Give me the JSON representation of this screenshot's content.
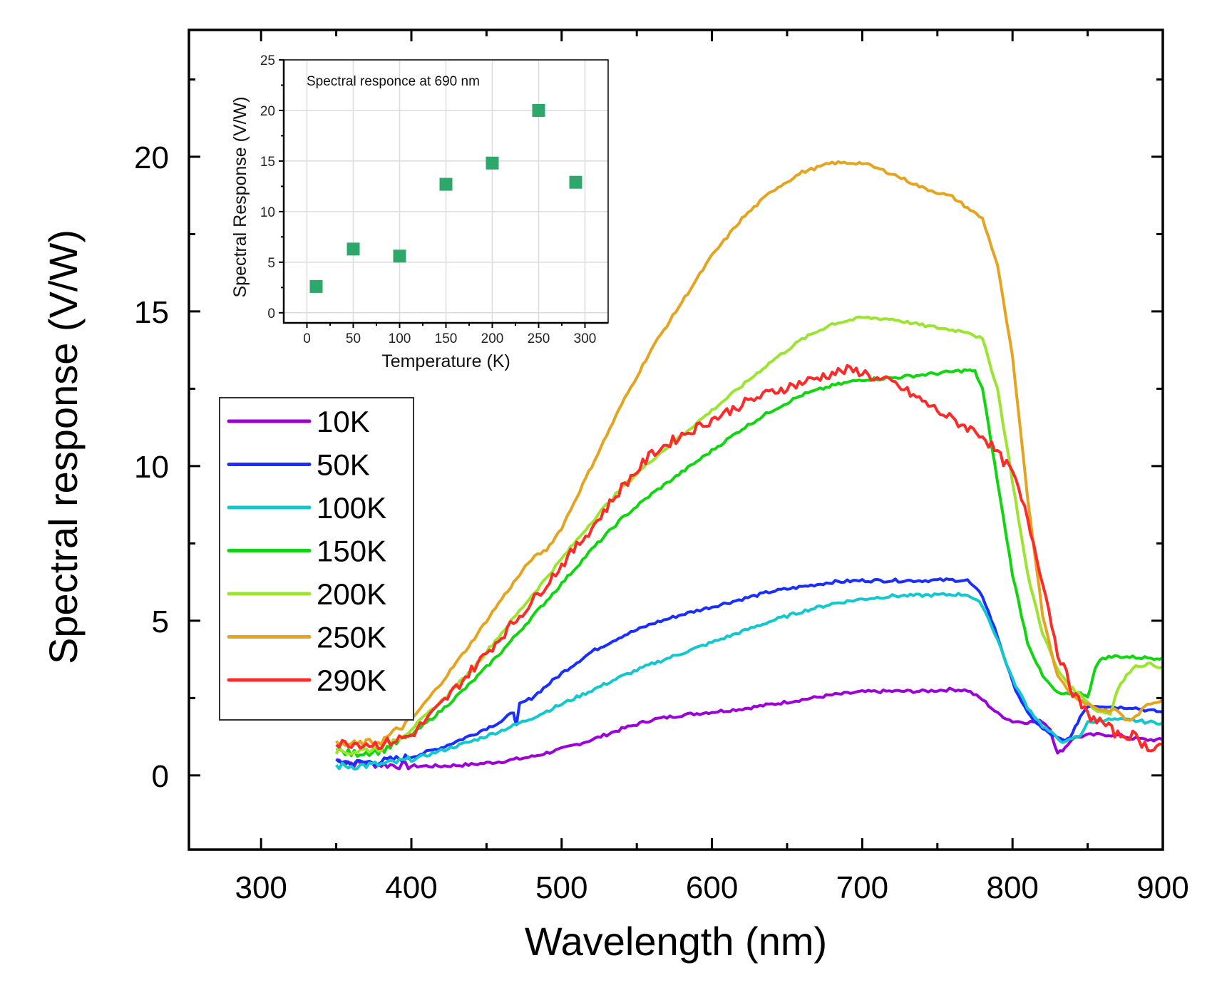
{
  "chart_data": [
    {
      "type": "line",
      "title": "",
      "xlabel": "Wavelength (nm)",
      "ylabel": "Spectral response (V/W)",
      "xlim": [
        252,
        900
      ],
      "ylim": [
        -2.4,
        24.1
      ],
      "xticks": [
        300,
        400,
        500,
        600,
        700,
        800,
        900
      ],
      "xtick_labels": [
        "300",
        "400",
        "500",
        "600",
        "700",
        "800",
        "900"
      ],
      "yticks": [
        0,
        5,
        10,
        15,
        20
      ],
      "ytick_labels": [
        "0",
        "5",
        "10",
        "15",
        "20"
      ],
      "grid": false,
      "legend_position": "left-middle",
      "series": [
        {
          "name": "10K",
          "color": "#9b00d9",
          "x": [
            350,
            360,
            380,
            400,
            420,
            440,
            460,
            480,
            500,
            520,
            540,
            560,
            580,
            600,
            620,
            640,
            660,
            680,
            700,
            720,
            740,
            760,
            770,
            780,
            790,
            800,
            810,
            820,
            825,
            830,
            835,
            840,
            850,
            860,
            870,
            880,
            890,
            900
          ],
          "y": [
            0.5,
            0.4,
            0.35,
            0.3,
            0.3,
            0.35,
            0.45,
            0.6,
            0.85,
            1.15,
            1.5,
            1.8,
            1.95,
            2.05,
            2.15,
            2.3,
            2.45,
            2.6,
            2.7,
            2.72,
            2.72,
            2.78,
            2.75,
            2.45,
            2.0,
            1.75,
            1.72,
            1.75,
            1.5,
            0.7,
            0.9,
            1.2,
            1.3,
            1.32,
            1.3,
            1.2,
            1.15,
            1.15
          ]
        },
        {
          "name": "50K",
          "color": "#1a2fff",
          "x": [
            350,
            360,
            380,
            400,
            420,
            440,
            460,
            468,
            470,
            472,
            480,
            500,
            520,
            540,
            560,
            580,
            600,
            620,
            640,
            660,
            680,
            700,
            720,
            740,
            760,
            770,
            780,
            790,
            800,
            810,
            820,
            830,
            835,
            840,
            845,
            850,
            860,
            870,
            880,
            890,
            900
          ],
          "y": [
            0.5,
            0.4,
            0.45,
            0.6,
            0.9,
            1.3,
            1.75,
            2.05,
            1.6,
            2.3,
            2.5,
            3.3,
            4.0,
            4.5,
            4.9,
            5.2,
            5.45,
            5.7,
            5.95,
            6.1,
            6.25,
            6.3,
            6.3,
            6.3,
            6.32,
            6.3,
            5.8,
            4.5,
            3.0,
            2.0,
            1.5,
            1.2,
            1.1,
            1.35,
            1.9,
            2.25,
            2.25,
            2.2,
            2.2,
            2.1,
            2.05
          ]
        },
        {
          "name": "100K",
          "color": "#12c8cf",
          "x": [
            350,
            360,
            380,
            400,
            420,
            440,
            460,
            480,
            500,
            520,
            540,
            560,
            580,
            600,
            620,
            640,
            660,
            680,
            700,
            720,
            740,
            760,
            770,
            780,
            790,
            800,
            810,
            820,
            830,
            835,
            840,
            845,
            850,
            860,
            870,
            880,
            890,
            900
          ],
          "y": [
            0.3,
            0.3,
            0.35,
            0.5,
            0.8,
            1.1,
            1.45,
            1.85,
            2.3,
            2.75,
            3.2,
            3.6,
            3.95,
            4.3,
            4.65,
            5.0,
            5.3,
            5.55,
            5.7,
            5.8,
            5.82,
            5.85,
            5.85,
            5.5,
            4.4,
            3.1,
            2.2,
            1.6,
            1.2,
            1.05,
            1.2,
            1.3,
            1.7,
            1.8,
            1.8,
            1.78,
            1.72,
            1.7
          ]
        },
        {
          "name": "150K",
          "color": "#10d610",
          "x": [
            350,
            360,
            380,
            400,
            420,
            440,
            460,
            480,
            500,
            520,
            540,
            560,
            580,
            600,
            620,
            640,
            660,
            680,
            700,
            720,
            740,
            760,
            770,
            775,
            780,
            790,
            800,
            810,
            820,
            830,
            840,
            845,
            850,
            855,
            860,
            870,
            880,
            890,
            900
          ],
          "y": [
            0.8,
            0.7,
            0.8,
            1.3,
            2.1,
            3.0,
            4.0,
            5.1,
            6.2,
            7.3,
            8.3,
            9.1,
            9.8,
            10.5,
            11.2,
            11.8,
            12.3,
            12.6,
            12.8,
            12.85,
            12.95,
            13.05,
            13.1,
            13.05,
            12.5,
            9.5,
            6.5,
            4.3,
            3.2,
            2.65,
            2.6,
            2.7,
            2.5,
            3.5,
            3.8,
            3.85,
            3.82,
            3.8,
            3.8
          ]
        },
        {
          "name": "200K",
          "color": "#9be530",
          "x": [
            350,
            360,
            380,
            400,
            420,
            440,
            460,
            480,
            500,
            520,
            540,
            560,
            580,
            600,
            620,
            640,
            660,
            680,
            700,
            720,
            740,
            760,
            770,
            780,
            790,
            800,
            810,
            820,
            830,
            840,
            850,
            855,
            860,
            865,
            870,
            880,
            890,
            900
          ],
          "y": [
            0.8,
            0.75,
            0.9,
            1.5,
            2.4,
            3.4,
            4.6,
            5.8,
            7.0,
            8.2,
            9.3,
            10.2,
            11.0,
            11.8,
            12.6,
            13.4,
            14.1,
            14.6,
            14.8,
            14.75,
            14.55,
            14.4,
            14.35,
            14.1,
            12.5,
            9.5,
            6.5,
            4.6,
            3.4,
            2.8,
            2.4,
            2.1,
            2.05,
            2.0,
            2.8,
            3.5,
            3.6,
            3.5
          ]
        },
        {
          "name": "250K",
          "color": "#e5a420",
          "x": [
            350,
            360,
            380,
            400,
            420,
            440,
            460,
            480,
            490,
            500,
            520,
            540,
            560,
            580,
            600,
            620,
            640,
            660,
            680,
            700,
            720,
            740,
            760,
            780,
            790,
            800,
            810,
            820,
            830,
            840,
            850,
            860,
            870,
            875,
            880,
            890,
            900
          ],
          "y": [
            1.0,
            1.0,
            1.1,
            1.8,
            3.0,
            4.3,
            5.7,
            7.0,
            7.3,
            8.0,
            10.0,
            12.0,
            13.8,
            15.3,
            16.8,
            18.0,
            18.9,
            19.5,
            19.8,
            19.8,
            19.45,
            19.0,
            18.7,
            18.0,
            16.5,
            13.5,
            9.0,
            5.2,
            3.2,
            2.6,
            2.3,
            2.1,
            2.1,
            1.8,
            1.8,
            2.3,
            2.45
          ]
        },
        {
          "name": "290K",
          "color": "#ff2a2a",
          "x": [
            350,
            360,
            380,
            400,
            420,
            440,
            460,
            480,
            500,
            520,
            540,
            560,
            580,
            600,
            620,
            640,
            660,
            680,
            690,
            700,
            710,
            720,
            740,
            760,
            780,
            790,
            800,
            810,
            820,
            830,
            840,
            850,
            860,
            870,
            880,
            890,
            900
          ],
          "y": [
            1.0,
            1.05,
            1.0,
            1.3,
            2.3,
            3.4,
            4.5,
            5.6,
            6.8,
            8.0,
            9.3,
            10.4,
            11.0,
            11.5,
            12.0,
            12.4,
            12.7,
            13.0,
            13.1,
            13.05,
            12.8,
            12.7,
            12.1,
            11.5,
            11.0,
            10.4,
            9.8,
            8.3,
            6.3,
            4.0,
            2.7,
            1.95,
            1.7,
            1.3,
            1.3,
            0.9,
            1.0
          ]
        }
      ]
    },
    {
      "type": "scatter",
      "title": "Spectral responce at 690 nm",
      "xlabel": "Temperature (K)",
      "ylabel": "Spectral Response (V/W)",
      "xlim": [
        -25,
        325
      ],
      "ylim": [
        -1,
        25
      ],
      "xticks": [
        0,
        50,
        100,
        150,
        200,
        250,
        300
      ],
      "xtick_labels": [
        "0",
        "50",
        "100",
        "150",
        "200",
        "250",
        "300"
      ],
      "yticks": [
        0,
        5,
        10,
        15,
        20,
        25
      ],
      "ytick_labels": [
        "0",
        "5",
        "10",
        "15",
        "20",
        "25"
      ],
      "grid": true,
      "marker_color": "#2ea86a",
      "x": [
        10,
        50,
        100,
        150,
        200,
        250,
        290
      ],
      "y": [
        2.6,
        6.3,
        5.6,
        12.7,
        14.8,
        20.0,
        12.9
      ]
    }
  ]
}
